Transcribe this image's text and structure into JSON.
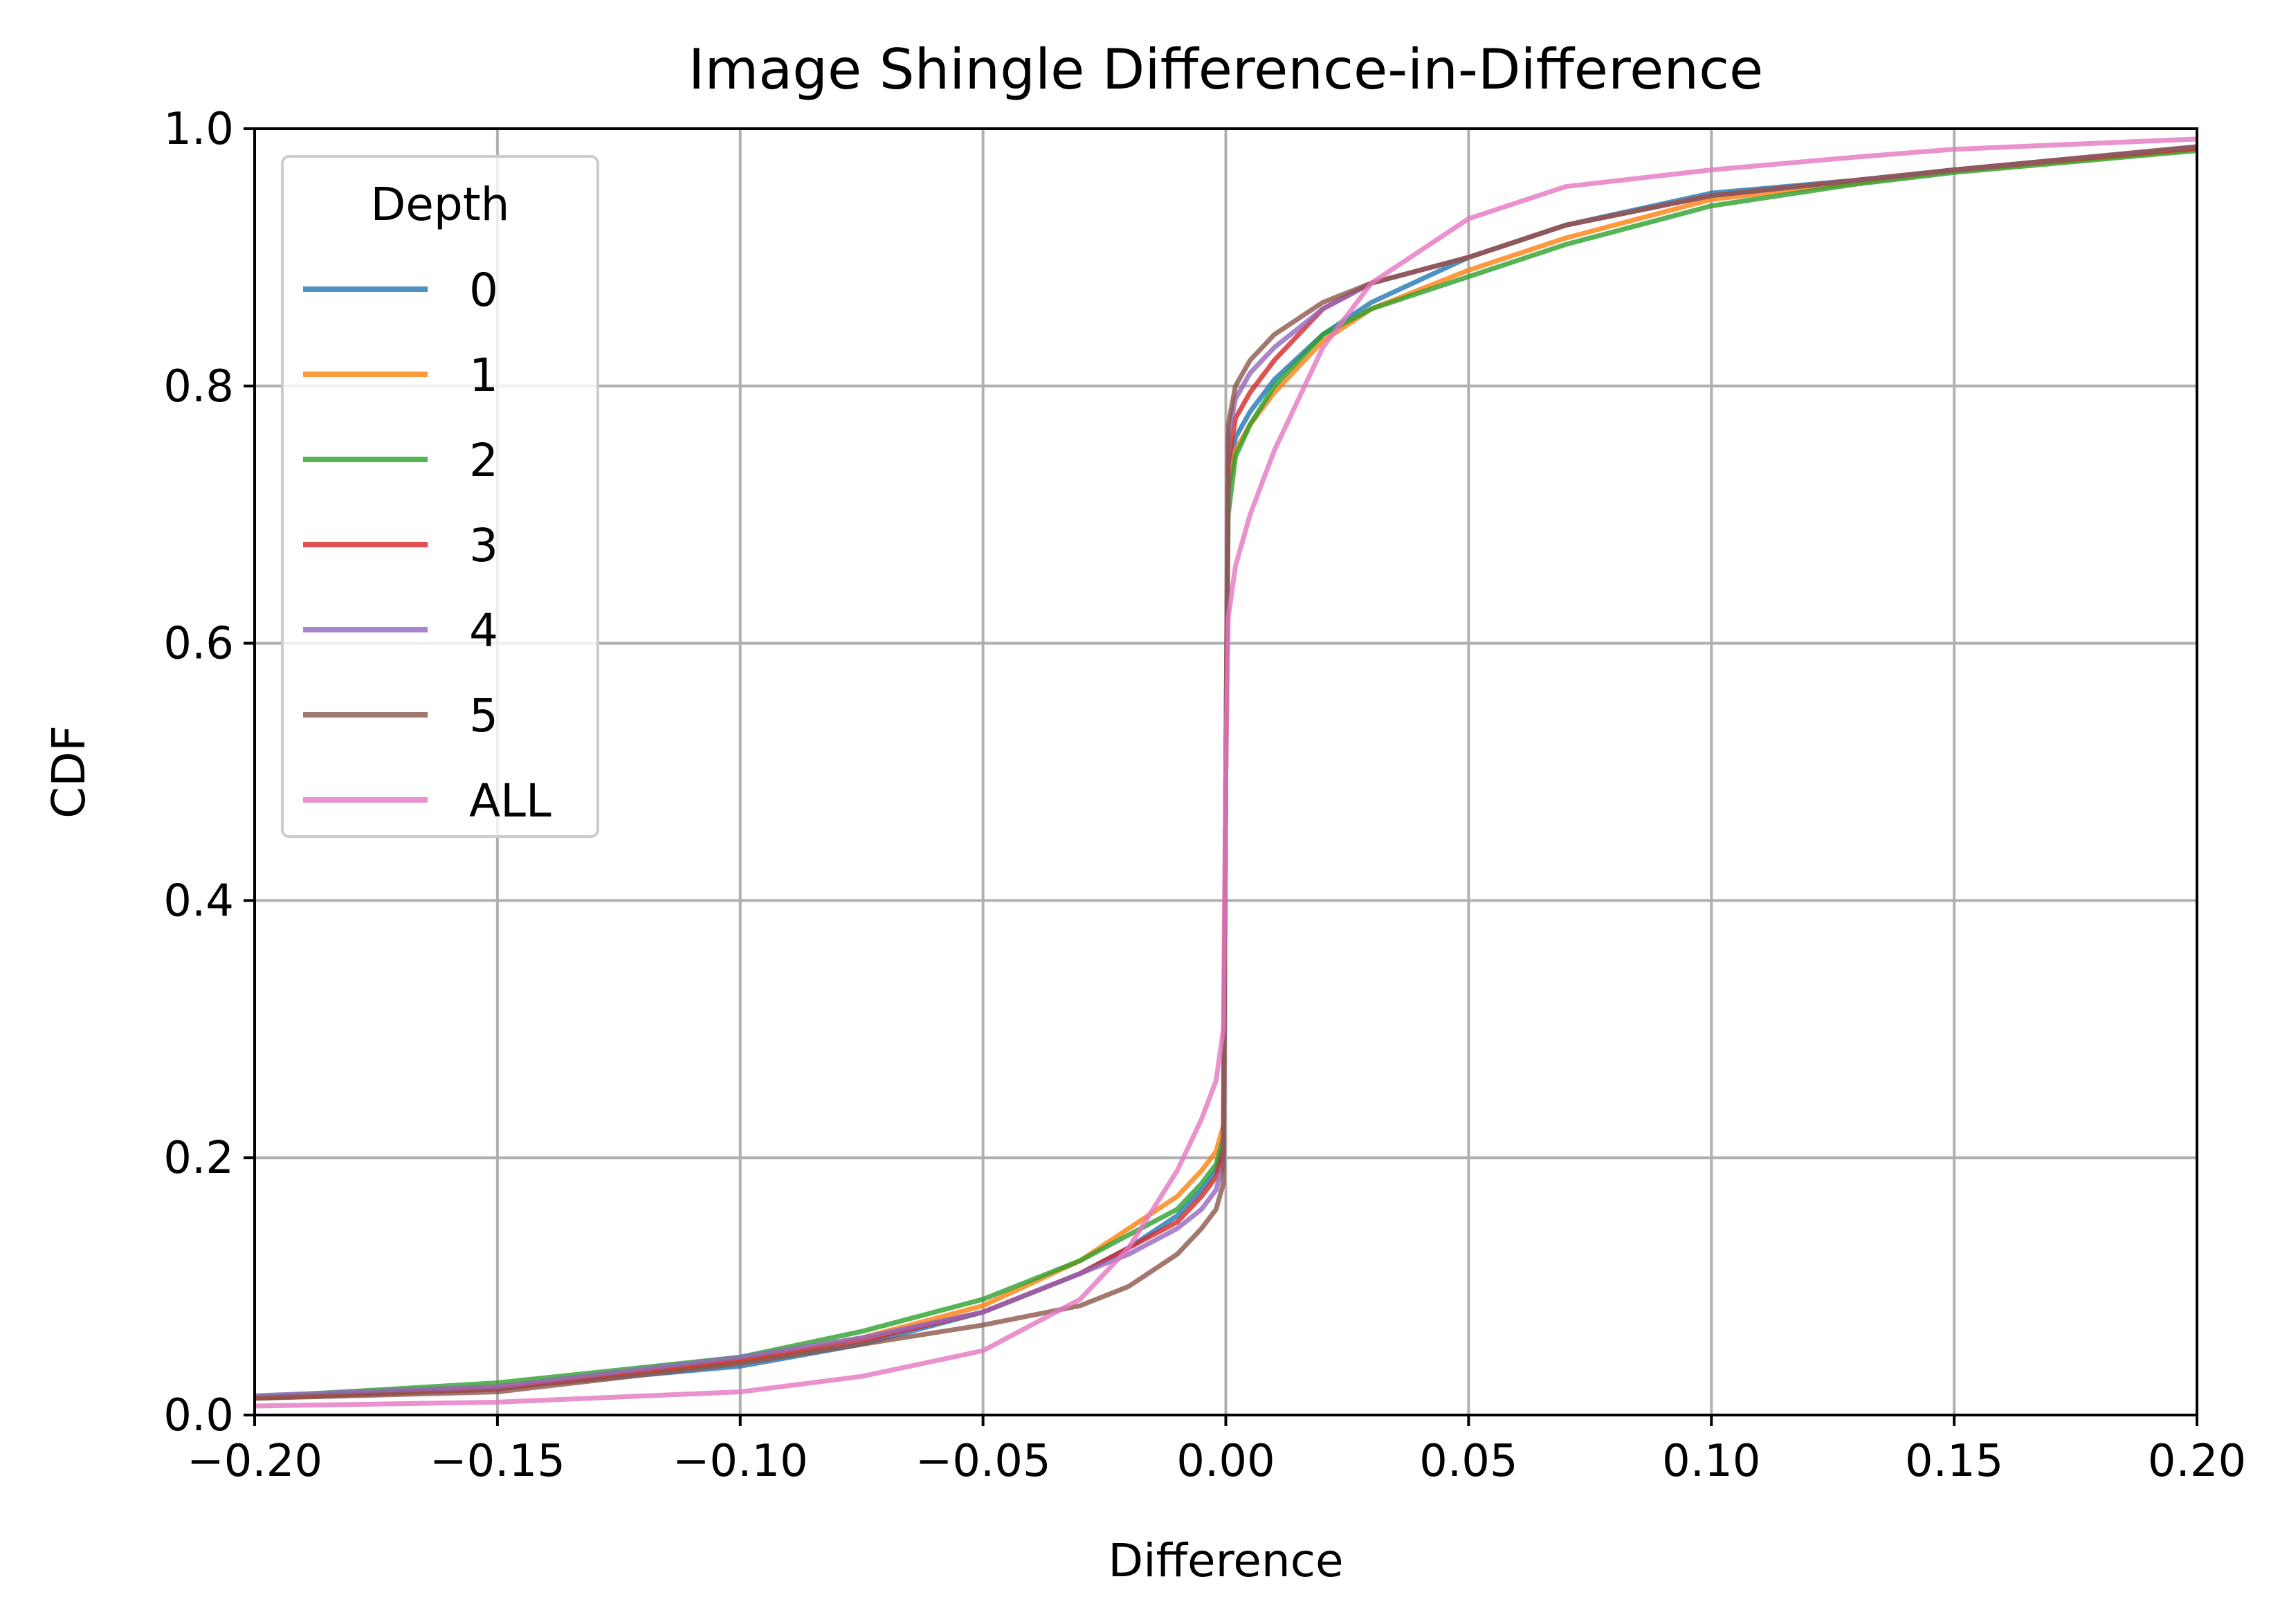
{
  "chart_data": {
    "type": "line",
    "title": "Image Shingle Difference-in-Difference",
    "xlabel": "Difference",
    "ylabel": "CDF",
    "xlim": [
      -0.2,
      0.2
    ],
    "ylim": [
      0.0,
      1.0
    ],
    "xticks": [
      -0.2,
      -0.15,
      -0.1,
      -0.05,
      0.0,
      0.05,
      0.1,
      0.15,
      0.2
    ],
    "xtick_labels": [
      "−0.20",
      "−0.15",
      "−0.10",
      "−0.05",
      "0.00",
      "0.05",
      "0.10",
      "0.15",
      "0.20"
    ],
    "yticks": [
      0.0,
      0.2,
      0.4,
      0.6,
      0.8,
      1.0
    ],
    "ytick_labels": [
      "0.0",
      "0.2",
      "0.4",
      "0.6",
      "0.8",
      "1.0"
    ],
    "grid": true,
    "legend": {
      "title": "Depth",
      "placement": "upper-left"
    },
    "series": [
      {
        "name": "0",
        "color": "#1f77b4",
        "x": [
          -0.2,
          -0.15,
          -0.1,
          -0.075,
          -0.05,
          -0.03,
          -0.02,
          -0.01,
          -0.005,
          -0.002,
          -0.0005,
          0.0,
          0.0005,
          0.002,
          0.005,
          0.01,
          0.02,
          0.03,
          0.05,
          0.07,
          0.1,
          0.13,
          0.15,
          0.2
        ],
        "y": [
          0.013,
          0.021,
          0.038,
          0.055,
          0.08,
          0.11,
          0.13,
          0.155,
          0.175,
          0.19,
          0.21,
          0.5,
          0.72,
          0.76,
          0.78,
          0.805,
          0.84,
          0.865,
          0.9,
          0.925,
          0.95,
          0.96,
          0.968,
          0.985
        ]
      },
      {
        "name": "1",
        "color": "#ff7f0e",
        "x": [
          -0.2,
          -0.15,
          -0.1,
          -0.075,
          -0.05,
          -0.03,
          -0.02,
          -0.01,
          -0.005,
          -0.002,
          -0.0005,
          0.0,
          0.0005,
          0.002,
          0.005,
          0.01,
          0.02,
          0.03,
          0.05,
          0.07,
          0.1,
          0.13,
          0.15,
          0.2
        ],
        "y": [
          0.013,
          0.022,
          0.042,
          0.06,
          0.085,
          0.12,
          0.145,
          0.17,
          0.19,
          0.205,
          0.225,
          0.5,
          0.72,
          0.75,
          0.77,
          0.795,
          0.835,
          0.86,
          0.89,
          0.915,
          0.945,
          0.958,
          0.967,
          0.984
        ]
      },
      {
        "name": "2",
        "color": "#2ca02c",
        "x": [
          -0.2,
          -0.15,
          -0.1,
          -0.075,
          -0.05,
          -0.03,
          -0.02,
          -0.01,
          -0.005,
          -0.002,
          -0.0005,
          0.0,
          0.0005,
          0.002,
          0.005,
          0.01,
          0.02,
          0.03,
          0.05,
          0.07,
          0.1,
          0.13,
          0.15,
          0.2
        ],
        "y": [
          0.014,
          0.025,
          0.045,
          0.065,
          0.09,
          0.12,
          0.14,
          0.16,
          0.18,
          0.195,
          0.215,
          0.5,
          0.7,
          0.745,
          0.77,
          0.8,
          0.84,
          0.86,
          0.885,
          0.91,
          0.94,
          0.957,
          0.966,
          0.983
        ]
      },
      {
        "name": "3",
        "color": "#d62728",
        "x": [
          -0.2,
          -0.15,
          -0.1,
          -0.075,
          -0.05,
          -0.03,
          -0.02,
          -0.01,
          -0.005,
          -0.002,
          -0.0005,
          0.0,
          0.0005,
          0.002,
          0.005,
          0.01,
          0.02,
          0.03,
          0.05,
          0.07,
          0.1,
          0.13,
          0.15,
          0.2
        ],
        "y": [
          0.013,
          0.02,
          0.042,
          0.058,
          0.08,
          0.11,
          0.13,
          0.15,
          0.17,
          0.185,
          0.205,
          0.5,
          0.74,
          0.775,
          0.795,
          0.82,
          0.86,
          0.88,
          0.9,
          0.925,
          0.948,
          0.96,
          0.968,
          0.985
        ]
      },
      {
        "name": "4",
        "color": "#9467bd",
        "x": [
          -0.2,
          -0.15,
          -0.1,
          -0.075,
          -0.05,
          -0.03,
          -0.02,
          -0.01,
          -0.005,
          -0.002,
          -0.0005,
          0.0,
          0.0005,
          0.002,
          0.005,
          0.01,
          0.02,
          0.03,
          0.05,
          0.07,
          0.1,
          0.13,
          0.15,
          0.2
        ],
        "y": [
          0.015,
          0.022,
          0.045,
          0.06,
          0.08,
          0.11,
          0.125,
          0.145,
          0.16,
          0.175,
          0.195,
          0.5,
          0.76,
          0.79,
          0.81,
          0.83,
          0.86,
          0.88,
          0.9,
          0.925,
          0.948,
          0.96,
          0.968,
          0.986
        ]
      },
      {
        "name": "5",
        "color": "#8c564b",
        "x": [
          -0.2,
          -0.15,
          -0.1,
          -0.075,
          -0.05,
          -0.03,
          -0.02,
          -0.01,
          -0.005,
          -0.002,
          -0.0005,
          0.0,
          0.0005,
          0.002,
          0.005,
          0.01,
          0.02,
          0.03,
          0.05,
          0.07,
          0.1,
          0.13,
          0.15,
          0.2
        ],
        "y": [
          0.013,
          0.018,
          0.04,
          0.055,
          0.07,
          0.085,
          0.1,
          0.125,
          0.145,
          0.16,
          0.18,
          0.5,
          0.77,
          0.8,
          0.82,
          0.84,
          0.865,
          0.88,
          0.9,
          0.925,
          0.948,
          0.96,
          0.968,
          0.986
        ]
      },
      {
        "name": "ALL",
        "color": "#e377c2",
        "x": [
          -0.2,
          -0.15,
          -0.1,
          -0.075,
          -0.05,
          -0.03,
          -0.02,
          -0.01,
          -0.005,
          -0.002,
          -0.0005,
          0.0,
          0.0005,
          0.002,
          0.005,
          0.01,
          0.02,
          0.03,
          0.05,
          0.07,
          0.1,
          0.13,
          0.15,
          0.2
        ],
        "y": [
          0.007,
          0.01,
          0.018,
          0.03,
          0.05,
          0.09,
          0.13,
          0.19,
          0.23,
          0.26,
          0.3,
          0.5,
          0.62,
          0.66,
          0.7,
          0.75,
          0.83,
          0.88,
          0.93,
          0.955,
          0.968,
          0.978,
          0.984,
          0.992
        ]
      }
    ]
  }
}
